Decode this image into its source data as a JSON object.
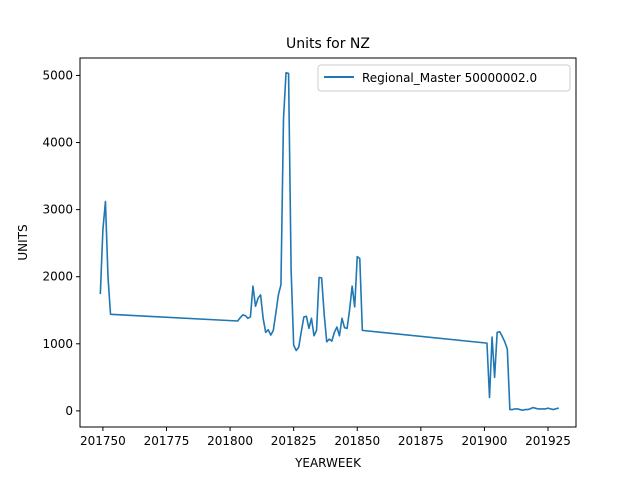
{
  "chart_data": {
    "type": "line",
    "title": "Units for NZ",
    "xlabel": "YEARWEEK",
    "ylabel": "UNITS",
    "xlim": [
      201741,
      201936
    ],
    "ylim": [
      -240,
      5260
    ],
    "xticks": [
      201750,
      201775,
      201800,
      201825,
      201850,
      201875,
      201900,
      201925
    ],
    "yticks": [
      0,
      1000,
      2000,
      3000,
      4000,
      5000
    ],
    "grid": false,
    "legend_position": "top-right",
    "series": [
      {
        "name": "Regional_Master 50000002.0",
        "color": "#1f77b4",
        "x": [
          201749,
          201750,
          201751,
          201752,
          201753,
          201803,
          201804,
          201805,
          201806,
          201807,
          201808,
          201809,
          201810,
          201811,
          201812,
          201813,
          201814,
          201815,
          201816,
          201817,
          201818,
          201819,
          201820,
          201821,
          201822,
          201823,
          201824,
          201825,
          201826,
          201827,
          201828,
          201829,
          201830,
          201831,
          201832,
          201833,
          201834,
          201835,
          201836,
          201837,
          201838,
          201839,
          201840,
          201841,
          201842,
          201843,
          201844,
          201845,
          201846,
          201847,
          201848,
          201849,
          201850,
          201851,
          201852,
          201901,
          201902,
          201903,
          201904,
          201905,
          201906,
          201907,
          201908,
          201909,
          201910,
          201911,
          201912,
          201913,
          201914,
          201915,
          201916,
          201917,
          201918,
          201919,
          201920,
          201921,
          201922,
          201923,
          201924,
          201925,
          201926,
          201927,
          201928,
          201929
        ],
        "y": [
          1750,
          2700,
          3120,
          2000,
          1440,
          1340,
          1390,
          1430,
          1420,
          1380,
          1400,
          1860,
          1560,
          1680,
          1730,
          1380,
          1170,
          1210,
          1130,
          1200,
          1460,
          1730,
          1880,
          4350,
          5040,
          5030,
          2100,
          980,
          900,
          950,
          1180,
          1400,
          1410,
          1230,
          1380,
          1120,
          1200,
          1990,
          1980,
          1440,
          1030,
          1070,
          1040,
          1170,
          1250,
          1120,
          1380,
          1240,
          1230,
          1510,
          1860,
          1550,
          2300,
          2270,
          1200,
          1010,
          200,
          1100,
          500,
          1170,
          1180,
          1110,
          1030,
          920,
          20,
          20,
          30,
          30,
          20,
          10,
          20,
          20,
          30,
          50,
          40,
          30,
          30,
          30,
          30,
          40,
          30,
          20,
          30,
          40
        ]
      }
    ]
  }
}
